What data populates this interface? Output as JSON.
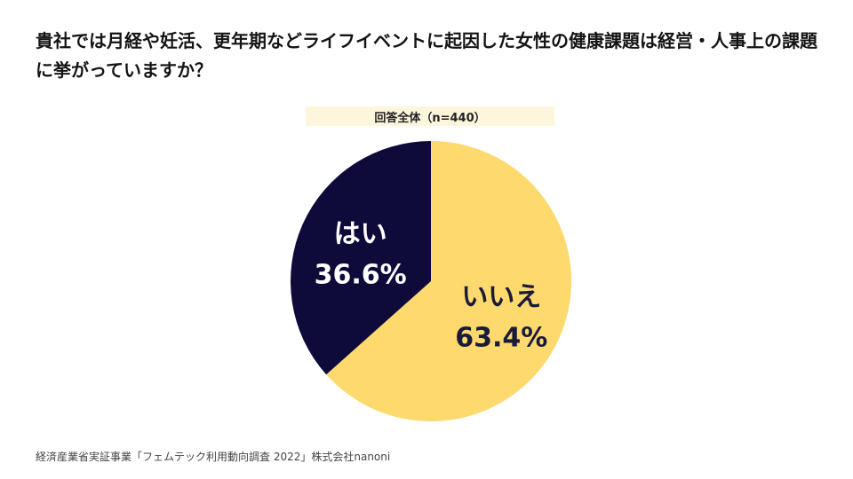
{
  "title": "貴社では月経や妊活、更年期などライフイベントに起因した女性の健康課題は経営・人事上の課題に挙がっていますか？",
  "subtitle": "回答全体（n=440）",
  "source": "経済産業省実証事業「フェムテック利用動向調査 2022」株式会社nanoni",
  "chart_data": {
    "type": "pie",
    "title": "貴社では月経や妊活、更年期などライフイベントに起因した女性の健康課題は経営・人事上の課題に挙がっていますか？",
    "subtitle": "回答全体（n=440）",
    "slices": [
      {
        "label": "いいえ",
        "value": 63.4,
        "display": "63.4%",
        "color": "#fdd96e",
        "text_color": "#1a1a3a"
      },
      {
        "label": "はい",
        "value": 36.6,
        "display": "36.6%",
        "color": "#0e0a3a",
        "text_color": "#ffffff"
      }
    ],
    "start_angle_deg": 0,
    "direction": "clockwise"
  }
}
